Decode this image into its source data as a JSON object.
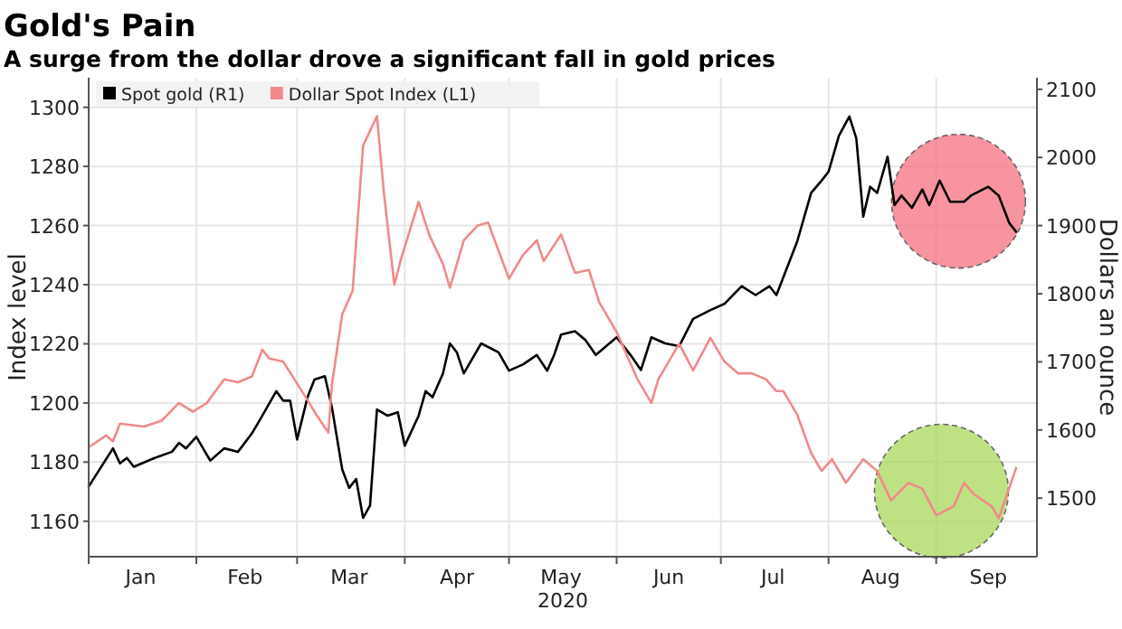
{
  "chart_data": {
    "type": "line",
    "title": "Gold's Pain",
    "subtitle": "A surge from the dollar drove a significant fall in gold prices",
    "xlabel": "2020",
    "ylabel": "Index level",
    "y2label": "Dollars an ounce",
    "xlim": [
      "2020-01-01",
      "2020-09-30"
    ],
    "xticks": [
      {
        "value": "2020-01-01",
        "label": null
      },
      {
        "value": "2020-01-16",
        "label": "Jan"
      },
      {
        "value": "2020-02-01",
        "label": null
      },
      {
        "value": "2020-02-15",
        "label": "Feb"
      },
      {
        "value": "2020-03-01",
        "label": null
      },
      {
        "value": "2020-03-16",
        "label": "Mar"
      },
      {
        "value": "2020-04-01",
        "label": null
      },
      {
        "value": "2020-04-16",
        "label": "Apr"
      },
      {
        "value": "2020-05-01",
        "label": null
      },
      {
        "value": "2020-05-16",
        "label": "May"
      },
      {
        "value": "2020-06-01",
        "label": null
      },
      {
        "value": "2020-06-16",
        "label": "Jun"
      },
      {
        "value": "2020-07-01",
        "label": null
      },
      {
        "value": "2020-07-16",
        "label": "Jul"
      },
      {
        "value": "2020-08-01",
        "label": null
      },
      {
        "value": "2020-08-16",
        "label": "Aug"
      },
      {
        "value": "2020-09-01",
        "label": null
      },
      {
        "value": "2020-09-16",
        "label": "Sep"
      }
    ],
    "ylim": [
      1148,
      1310
    ],
    "yticks": [
      1160,
      1180,
      1200,
      1220,
      1240,
      1260,
      1280,
      1300
    ],
    "y2lim": [
      1414,
      2117
    ],
    "y2ticks": [
      1500,
      1600,
      1700,
      1800,
      1900,
      2000,
      2100
    ],
    "grid": true,
    "legend": "top left",
    "line_style": "solid",
    "series": [
      {
        "name": "Spot gold (R1)",
        "color": "#000000",
        "axis": "y2",
        "x": [
          "2020-01-01",
          "2020-01-08",
          "2020-01-10",
          "2020-01-12",
          "2020-01-14",
          "2020-01-20",
          "2020-01-25",
          "2020-01-27",
          "2020-01-29",
          "2020-02-01",
          "2020-02-05",
          "2020-02-09",
          "2020-02-13",
          "2020-02-17",
          "2020-02-20",
          "2020-02-24",
          "2020-02-26",
          "2020-02-28",
          "2020-03-01",
          "2020-03-04",
          "2020-03-06",
          "2020-03-09",
          "2020-03-11",
          "2020-03-14",
          "2020-03-16",
          "2020-03-18",
          "2020-03-20",
          "2020-03-22",
          "2020-03-24",
          "2020-03-27",
          "2020-03-30",
          "2020-04-01",
          "2020-04-05",
          "2020-04-07",
          "2020-04-09",
          "2020-04-12",
          "2020-04-14",
          "2020-04-16",
          "2020-04-18",
          "2020-04-23",
          "2020-04-28",
          "2020-05-01",
          "2020-05-05",
          "2020-05-09",
          "2020-05-12",
          "2020-05-14",
          "2020-05-16",
          "2020-05-20",
          "2020-05-23",
          "2020-05-26",
          "2020-06-01",
          "2020-06-05",
          "2020-06-08",
          "2020-06-11",
          "2020-06-15",
          "2020-06-19",
          "2020-06-23",
          "2020-06-28",
          "2020-07-02",
          "2020-07-07",
          "2020-07-11",
          "2020-07-15",
          "2020-07-17",
          "2020-07-23",
          "2020-07-27",
          "2020-07-30",
          "2020-08-01",
          "2020-08-04",
          "2020-08-07",
          "2020-08-09",
          "2020-08-11",
          "2020-08-13",
          "2020-08-15",
          "2020-08-18",
          "2020-08-20",
          "2020-08-22",
          "2020-08-25",
          "2020-08-28",
          "2020-08-30",
          "2020-09-02",
          "2020-09-05",
          "2020-09-09",
          "2020-09-11",
          "2020-09-16",
          "2020-09-19",
          "2020-09-22",
          "2020-09-24"
        ],
        "values": [
          1517,
          1573,
          1551,
          1559,
          1546,
          1559,
          1568,
          1581,
          1573,
          1590,
          1555,
          1573,
          1568,
          1595,
          1621,
          1657,
          1643,
          1643,
          1586,
          1648,
          1674,
          1679,
          1634,
          1542,
          1515,
          1528,
          1471,
          1489,
          1630,
          1621,
          1626,
          1577,
          1621,
          1657,
          1648,
          1683,
          1727,
          1714,
          1683,
          1727,
          1714,
          1687,
          1696,
          1710,
          1687,
          1710,
          1740,
          1745,
          1732,
          1710,
          1736,
          1710,
          1688,
          1736,
          1727,
          1723,
          1763,
          1776,
          1785,
          1811,
          1798,
          1811,
          1798,
          1877,
          1948,
          1966,
          1979,
          2032,
          2060,
          2028,
          1913,
          1957,
          1948,
          2001,
          1930,
          1944,
          1926,
          1953,
          1930,
          1966,
          1935,
          1935,
          1944,
          1957,
          1944,
          1904,
          1891
        ]
      },
      {
        "name": "Dollar Spot Index (L1)",
        "color": "#f08a8a",
        "axis": "y",
        "x": [
          "2020-01-01",
          "2020-01-06",
          "2020-01-08",
          "2020-01-10",
          "2020-01-17",
          "2020-01-22",
          "2020-01-27",
          "2020-01-31",
          "2020-02-04",
          "2020-02-09",
          "2020-02-13",
          "2020-02-17",
          "2020-02-20",
          "2020-02-22",
          "2020-02-26",
          "2020-03-04",
          "2020-03-06",
          "2020-03-10",
          "2020-03-11",
          "2020-03-14",
          "2020-03-17",
          "2020-03-20",
          "2020-03-24",
          "2020-03-26",
          "2020-03-29",
          "2020-03-31",
          "2020-04-05",
          "2020-04-08",
          "2020-04-12",
          "2020-04-14",
          "2020-04-18",
          "2020-04-22",
          "2020-04-25",
          "2020-05-01",
          "2020-05-05",
          "2020-05-09",
          "2020-05-11",
          "2020-05-16",
          "2020-05-20",
          "2020-05-24",
          "2020-05-27",
          "2020-06-01",
          "2020-06-07",
          "2020-06-11",
          "2020-06-13",
          "2020-06-15",
          "2020-06-19",
          "2020-06-23",
          "2020-06-28",
          "2020-07-02",
          "2020-07-06",
          "2020-07-10",
          "2020-07-14",
          "2020-07-17",
          "2020-07-19",
          "2020-07-23",
          "2020-07-27",
          "2020-07-30",
          "2020-08-02",
          "2020-08-06",
          "2020-08-11",
          "2020-08-15",
          "2020-08-19",
          "2020-08-24",
          "2020-08-28",
          "2020-09-01",
          "2020-09-06",
          "2020-09-09",
          "2020-09-12",
          "2020-09-17",
          "2020-09-19",
          "2020-09-24"
        ],
        "values": [
          1185,
          1189,
          1187,
          1193,
          1192,
          1194,
          1200,
          1197,
          1200,
          1208,
          1207,
          1209,
          1218,
          1215,
          1214,
          1201,
          1197,
          1190,
          1206,
          1230,
          1238,
          1287,
          1297,
          1271,
          1240,
          1249,
          1268,
          1257,
          1247,
          1239,
          1255,
          1260,
          1261,
          1242,
          1250,
          1255,
          1248,
          1257,
          1244,
          1245,
          1234,
          1224,
          1208,
          1200,
          1208,
          1212,
          1220,
          1211,
          1222,
          1214,
          1210,
          1210,
          1208,
          1204,
          1204,
          1196,
          1183,
          1177,
          1181,
          1173,
          1181,
          1177,
          1167,
          1173,
          1171,
          1162,
          1165,
          1173,
          1169,
          1165,
          1161,
          1178
        ]
      }
    ]
  }
}
